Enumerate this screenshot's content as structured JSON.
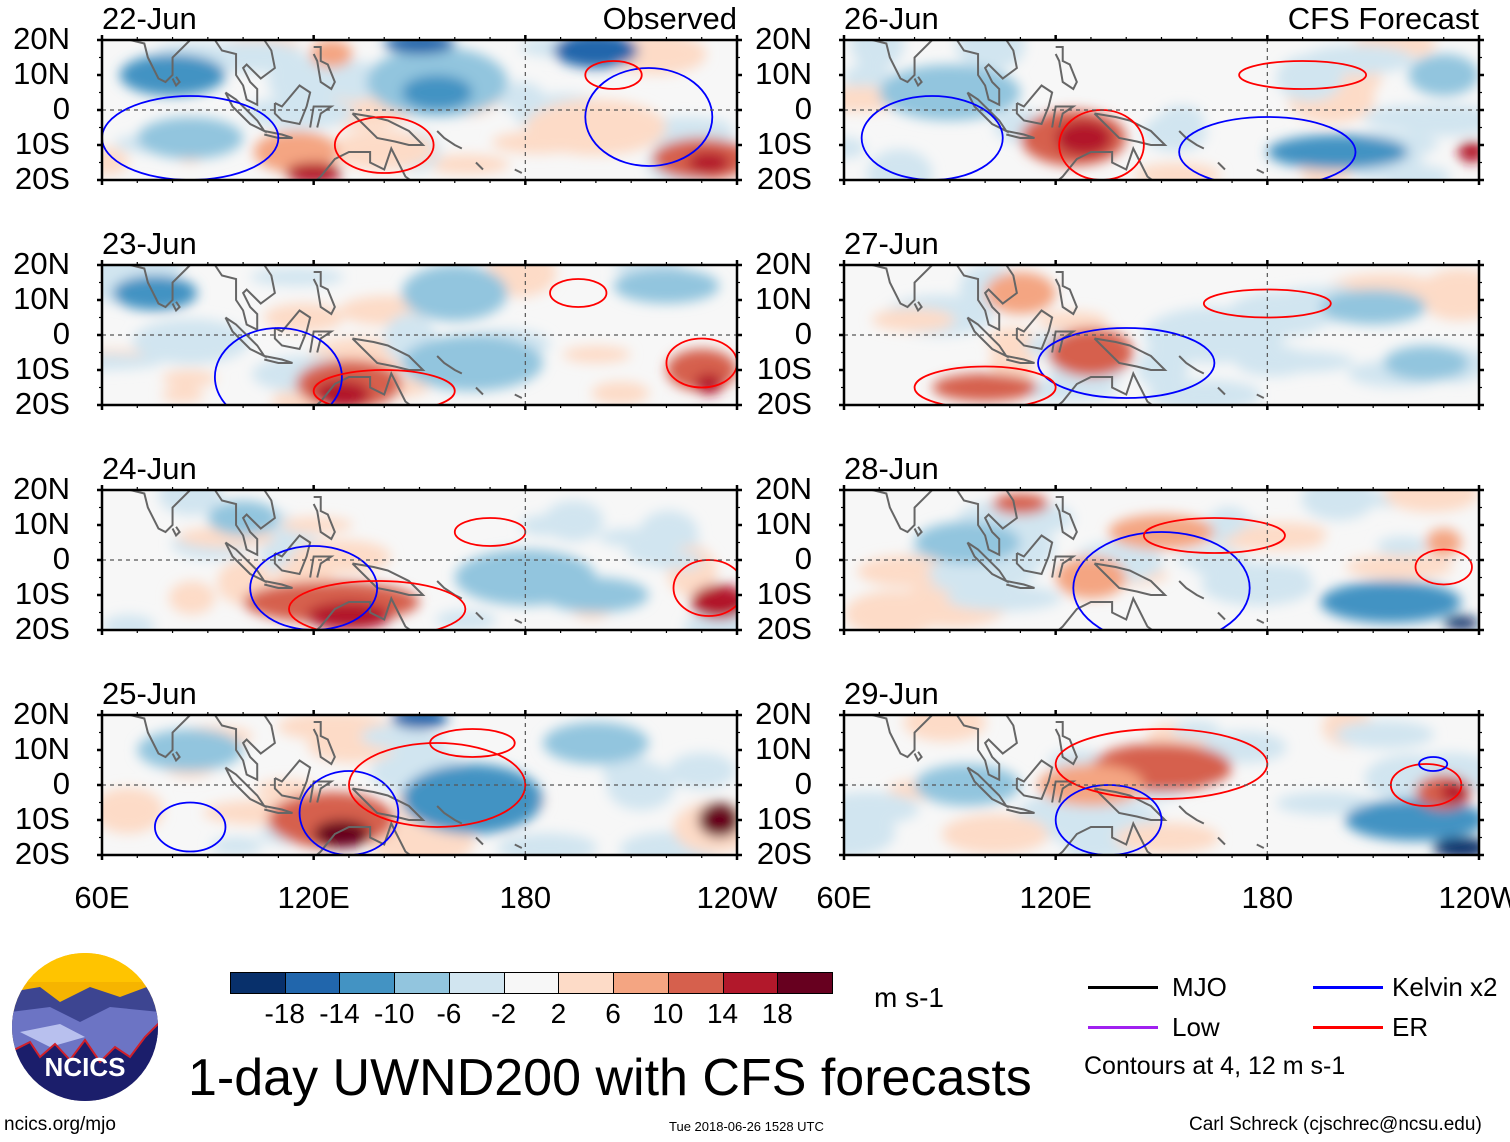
{
  "figure": {
    "title": "1-day UWND200 with CFS forecasts",
    "observed_label": "Observed",
    "forecast_label": "CFS Forecast",
    "y_ticks": [
      "20N",
      "10N",
      "0",
      "10S",
      "20S"
    ],
    "x_ticks": [
      "60E",
      "120E",
      "180",
      "120W"
    ],
    "panels_observed": [
      {
        "date": "22-Jun"
      },
      {
        "date": "23-Jun"
      },
      {
        "date": "24-Jun"
      },
      {
        "date": "25-Jun"
      }
    ],
    "panels_forecast": [
      {
        "date": "26-Jun"
      },
      {
        "date": "27-Jun"
      },
      {
        "date": "28-Jun"
      },
      {
        "date": "29-Jun"
      }
    ]
  },
  "colorbar": {
    "units": "m s-1",
    "labels": [
      "-18",
      "-14",
      "-10",
      "-6",
      "-2",
      "2",
      "6",
      "10",
      "14",
      "18"
    ],
    "colors": [
      "#08306b",
      "#2166ac",
      "#4393c3",
      "#92c5de",
      "#d1e5f0",
      "#f7f7f7",
      "#fddbc7",
      "#f4a582",
      "#d6604d",
      "#b2182b",
      "#67001f"
    ]
  },
  "legend": {
    "items": [
      {
        "label": "MJO",
        "color": "#000000"
      },
      {
        "label": "Kelvin x2",
        "color": "#0000ff"
      },
      {
        "label": "Low",
        "color": "#a020f0"
      },
      {
        "label": "ER",
        "color": "#ff0000"
      }
    ],
    "contours_note": "Contours at 4, 12 m s-1"
  },
  "logo": {
    "text": "NCICS"
  },
  "footer": {
    "url": "ncics.org/mjo",
    "timestamp": "Tue 2018-06-26 1528 UTC",
    "credit": "Carl Schreck (cjschrec@ncsu.edu)"
  }
}
